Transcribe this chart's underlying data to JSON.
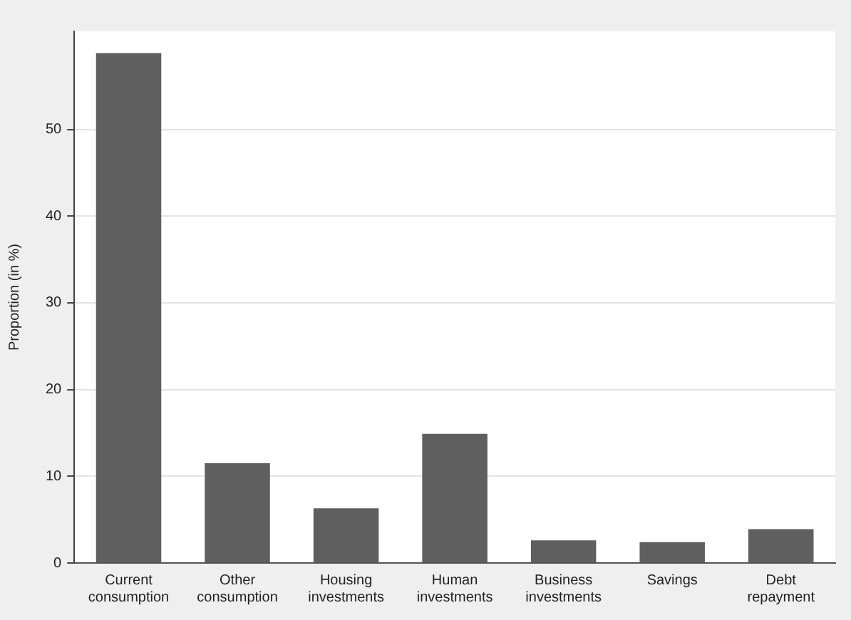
{
  "chart_data": {
    "type": "bar",
    "ylabel": "Proportion (in %)",
    "categories": [
      "Current consumption",
      "Other consumption",
      "Housing investments",
      "Human investments",
      "Business investments",
      "Savings",
      "Debt repayment"
    ],
    "values": [
      58.8,
      11.5,
      6.3,
      14.9,
      2.6,
      2.4,
      3.9
    ],
    "color": "#5f5f5f",
    "ylim": [
      0,
      61.3
    ],
    "yticks": [
      0,
      10,
      20,
      30,
      40,
      50
    ],
    "grid": "y",
    "legend": false
  }
}
